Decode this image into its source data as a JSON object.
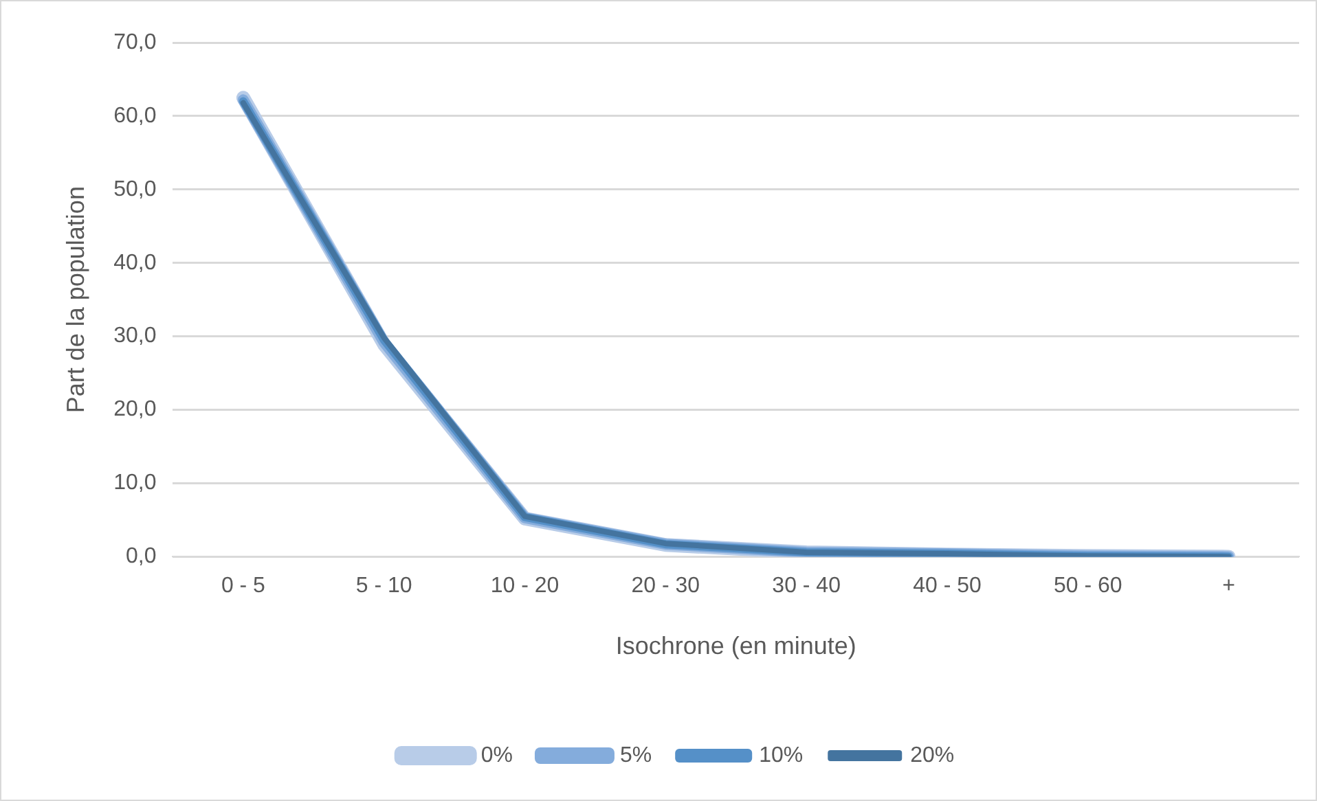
{
  "chart_data": {
    "type": "line",
    "xlabel": "Isochrone (en minute)",
    "ylabel": "Part de la population",
    "categories": [
      "0 - 5",
      "5 - 10",
      "10 - 20",
      "20 - 30",
      "30 - 40",
      "40 - 50",
      "50 - 60",
      "+"
    ],
    "series": [
      {
        "name": "0%",
        "color": "#b8cce8",
        "values": [
          62.5,
          28.9,
          5.2,
          1.6,
          0.6,
          0.3,
          0.1,
          0.0
        ]
      },
      {
        "name": "5%",
        "color": "#84acdc",
        "values": [
          62.2,
          29.2,
          5.3,
          1.7,
          0.6,
          0.4,
          0.1,
          0.0
        ]
      },
      {
        "name": "10%",
        "color": "#5590c8",
        "values": [
          62.0,
          29.5,
          5.4,
          1.7,
          0.6,
          0.4,
          0.1,
          0.0
        ]
      },
      {
        "name": "20%",
        "color": "#44749f",
        "values": [
          61.8,
          29.8,
          5.5,
          1.8,
          0.6,
          0.4,
          0.1,
          0.0
        ]
      }
    ],
    "ylim": [
      0,
      70
    ],
    "yticks": [
      {
        "value": 0,
        "label": "0,0"
      },
      {
        "value": 10,
        "label": "10,0"
      },
      {
        "value": 20,
        "label": "20,0"
      },
      {
        "value": 30,
        "label": "30,0"
      },
      {
        "value": 40,
        "label": "40,0"
      },
      {
        "value": 50,
        "label": "50,0"
      },
      {
        "value": 60,
        "label": "60,0"
      },
      {
        "value": 70,
        "label": "70,0"
      }
    ],
    "grid": "y",
    "legend": "bottom",
    "marker": "none",
    "line_style": "solid"
  }
}
